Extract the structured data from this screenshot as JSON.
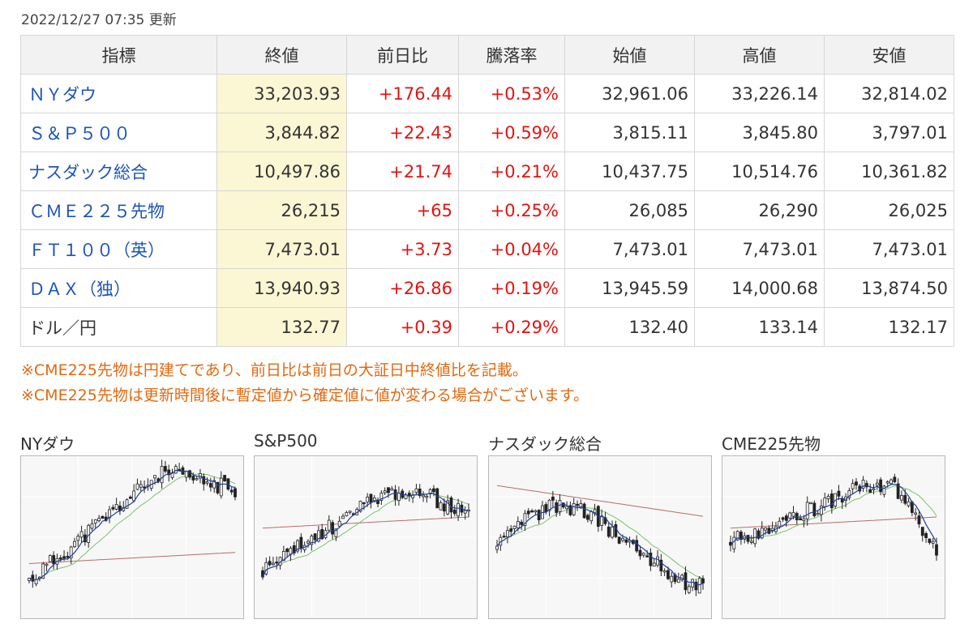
{
  "updated": "2022/12/27 07:35 更新",
  "table": {
    "headers": [
      "指標",
      "終値",
      "前日比",
      "騰落率",
      "始値",
      "高値",
      "安値"
    ],
    "rows": [
      {
        "name": "ＮＹダウ",
        "link": true,
        "close": "33,203.93",
        "change": "+176.44",
        "pct": "+0.53%",
        "open": "32,961.06",
        "high": "33,226.14",
        "low": "32,814.02"
      },
      {
        "name": "Ｓ＆Ｐ５００",
        "link": true,
        "close": "3,844.82",
        "change": "+22.43",
        "pct": "+0.59%",
        "open": "3,815.11",
        "high": "3,845.80",
        "low": "3,797.01"
      },
      {
        "name": "ナスダック総合",
        "link": true,
        "close": "10,497.86",
        "change": "+21.74",
        "pct": "+0.21%",
        "open": "10,437.75",
        "high": "10,514.76",
        "low": "10,361.82"
      },
      {
        "name": "ＣＭＥ２２５先物",
        "link": true,
        "close": "26,215",
        "change": "+65",
        "pct": "+0.25%",
        "open": "26,085",
        "high": "26,290",
        "low": "26,025"
      },
      {
        "name": "ＦＴ１００（英）",
        "link": true,
        "close": "7,473.01",
        "change": "+3.73",
        "pct": "+0.04%",
        "open": "7,473.01",
        "high": "7,473.01",
        "low": "7,473.01"
      },
      {
        "name": "ＤＡＸ（独）",
        "link": true,
        "close": "13,940.93",
        "change": "+26.86",
        "pct": "+0.19%",
        "open": "13,945.59",
        "high": "14,000.68",
        "low": "13,874.50"
      },
      {
        "name": "ドル／円",
        "link": false,
        "close": "132.77",
        "change": "+0.39",
        "pct": "+0.29%",
        "open": "132.40",
        "high": "133.14",
        "low": "132.17"
      }
    ]
  },
  "notes": [
    "※CME225先物は円建てであり、前日比は前日の大証日中終値比を記載。",
    "※CME225先物は更新時間後に暫定値から確定値に値が変わる場合がございます。"
  ],
  "charts": [
    {
      "title": "NYダウ"
    },
    {
      "title": "S&P500"
    },
    {
      "title": "ナスダック総合"
    },
    {
      "title": "CME225先物"
    }
  ],
  "colors": {
    "link": "#1a54b8",
    "up": "#e3130f",
    "note": "#e06a10",
    "close_bg": "#fbf6d4",
    "ma_short": "#1f3f9e",
    "ma_mid": "#7cc46a",
    "ma_long": "#b86a6a"
  }
}
